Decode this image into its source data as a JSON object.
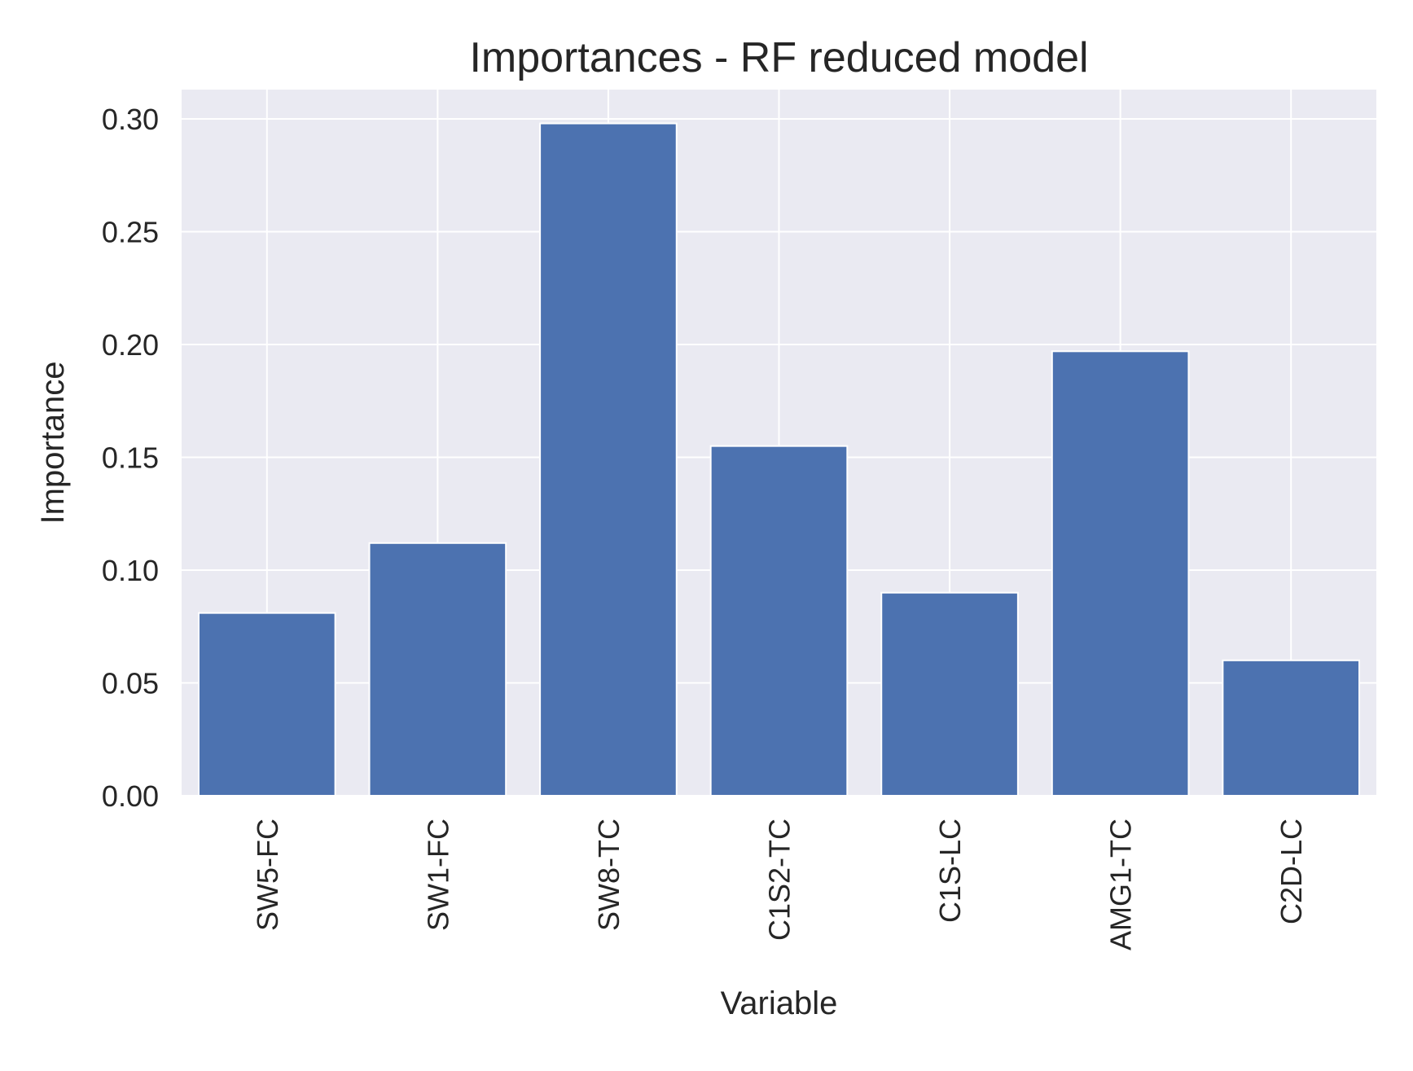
{
  "chart_data": {
    "type": "bar",
    "title": "Importances - RF reduced model",
    "xlabel": "Variable",
    "ylabel": "Importance",
    "categories": [
      "SW5-FC",
      "SW1-FC",
      "SW8-TC",
      "C1S2-TC",
      "C1S-LC",
      "AMG1-TC",
      "C2D-LC"
    ],
    "values": [
      0.081,
      0.112,
      0.298,
      0.155,
      0.09,
      0.197,
      0.06
    ],
    "ylim": [
      0,
      0.313
    ],
    "yticks": [
      0.0,
      0.05,
      0.1,
      0.15,
      0.2,
      0.25,
      0.3
    ],
    "ytick_labels": [
      "0.00",
      "0.05",
      "0.10",
      "0.15",
      "0.20",
      "0.25",
      "0.30"
    ],
    "grid": true,
    "x_tick_rotation": "vertical",
    "colors": {
      "bar": "#4c72b0",
      "plot_background": "#eaeaf2",
      "grid": "#ffffff"
    }
  }
}
